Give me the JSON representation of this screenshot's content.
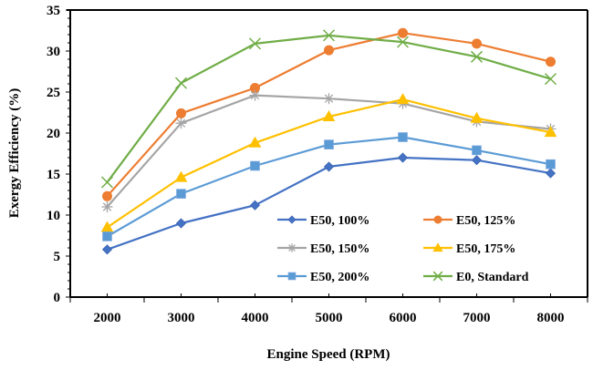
{
  "chart_data": {
    "type": "line",
    "title": "",
    "xlabel": "Engine Speed (RPM)",
    "ylabel": "Exergy Efficiency (%)",
    "categories": [
      "2000",
      "3000",
      "4000",
      "5000",
      "6000",
      "7000",
      "8000"
    ],
    "ylim": [
      0,
      35
    ],
    "yticks": [
      "0",
      "5",
      "10",
      "15",
      "20",
      "25",
      "30",
      "35"
    ],
    "grid": false,
    "legend_position": "bottom-right-inside",
    "series": [
      {
        "name": "E50, 100%",
        "marker": "diamond",
        "color": "#4472C4",
        "values": [
          5.8,
          9.0,
          11.2,
          15.9,
          17.0,
          16.7,
          15.1
        ]
      },
      {
        "name": "E50, 125%",
        "marker": "circle",
        "color": "#ED7D31",
        "values": [
          12.3,
          22.4,
          25.5,
          30.1,
          32.2,
          30.9,
          28.7
        ]
      },
      {
        "name": "E50, 150%",
        "marker": "asterisk",
        "color": "#A5A5A5",
        "values": [
          11.0,
          21.2,
          24.6,
          24.2,
          23.6,
          21.4,
          20.5
        ]
      },
      {
        "name": "E50, 175%",
        "marker": "triangle",
        "color": "#FFC000",
        "values": [
          8.5,
          14.6,
          18.8,
          22.0,
          24.1,
          21.8,
          20.1
        ]
      },
      {
        "name": "E50, 200%",
        "marker": "square",
        "color": "#5B9BD5",
        "values": [
          7.4,
          12.6,
          16.0,
          18.6,
          19.5,
          17.9,
          16.2
        ]
      },
      {
        "name": "E0, Standard",
        "marker": "x",
        "color": "#70AD47",
        "values": [
          14.0,
          26.1,
          30.9,
          31.9,
          31.1,
          29.3,
          26.6
        ]
      }
    ]
  }
}
